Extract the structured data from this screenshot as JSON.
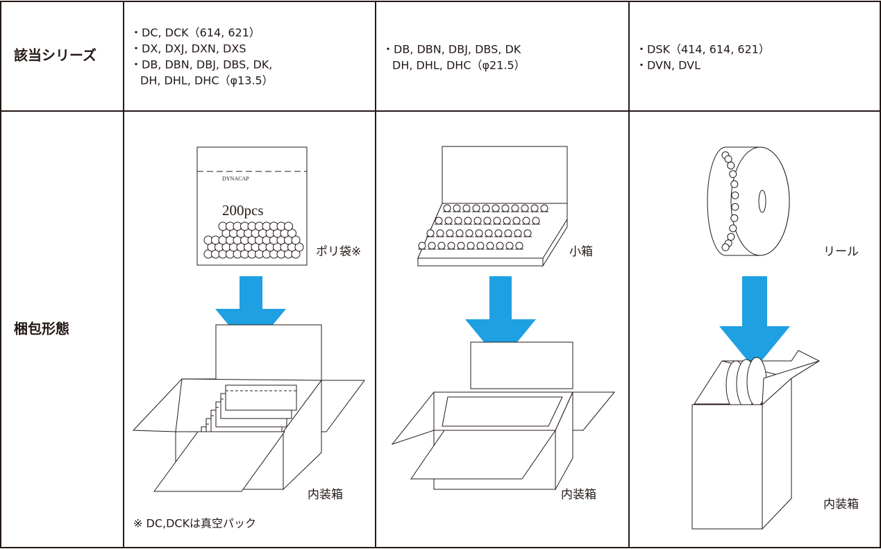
{
  "series_row": {
    "header": "該当シリーズ",
    "cells": [
      [
        "・DC, DCK（614, 621）",
        "・DX, DXJ, DXN, DXS",
        "・DB, DBN, DBJ, DBS, DK,",
        "DH, DHL, DHC（φ13.5）"
      ],
      [
        "・DB, DBN, DBJ, DBS, DK",
        "DH, DHL, DHC（φ21.5）"
      ],
      [
        "・DSK（414, 614, 621）",
        "・DVN, DVL"
      ]
    ]
  },
  "packaging_row": {
    "header": "梱包形態",
    "columns": [
      {
        "bag_brand": "DYNACAP",
        "bag_count": "200pcs",
        "inner_label": "ポリ袋※",
        "outer_label": "内装箱",
        "note": "※ DC,DCKは真空パック"
      },
      {
        "inner_label": "小箱",
        "outer_label": "内装箱"
      },
      {
        "inner_label": "リール",
        "outer_label": "内装箱"
      }
    ]
  }
}
